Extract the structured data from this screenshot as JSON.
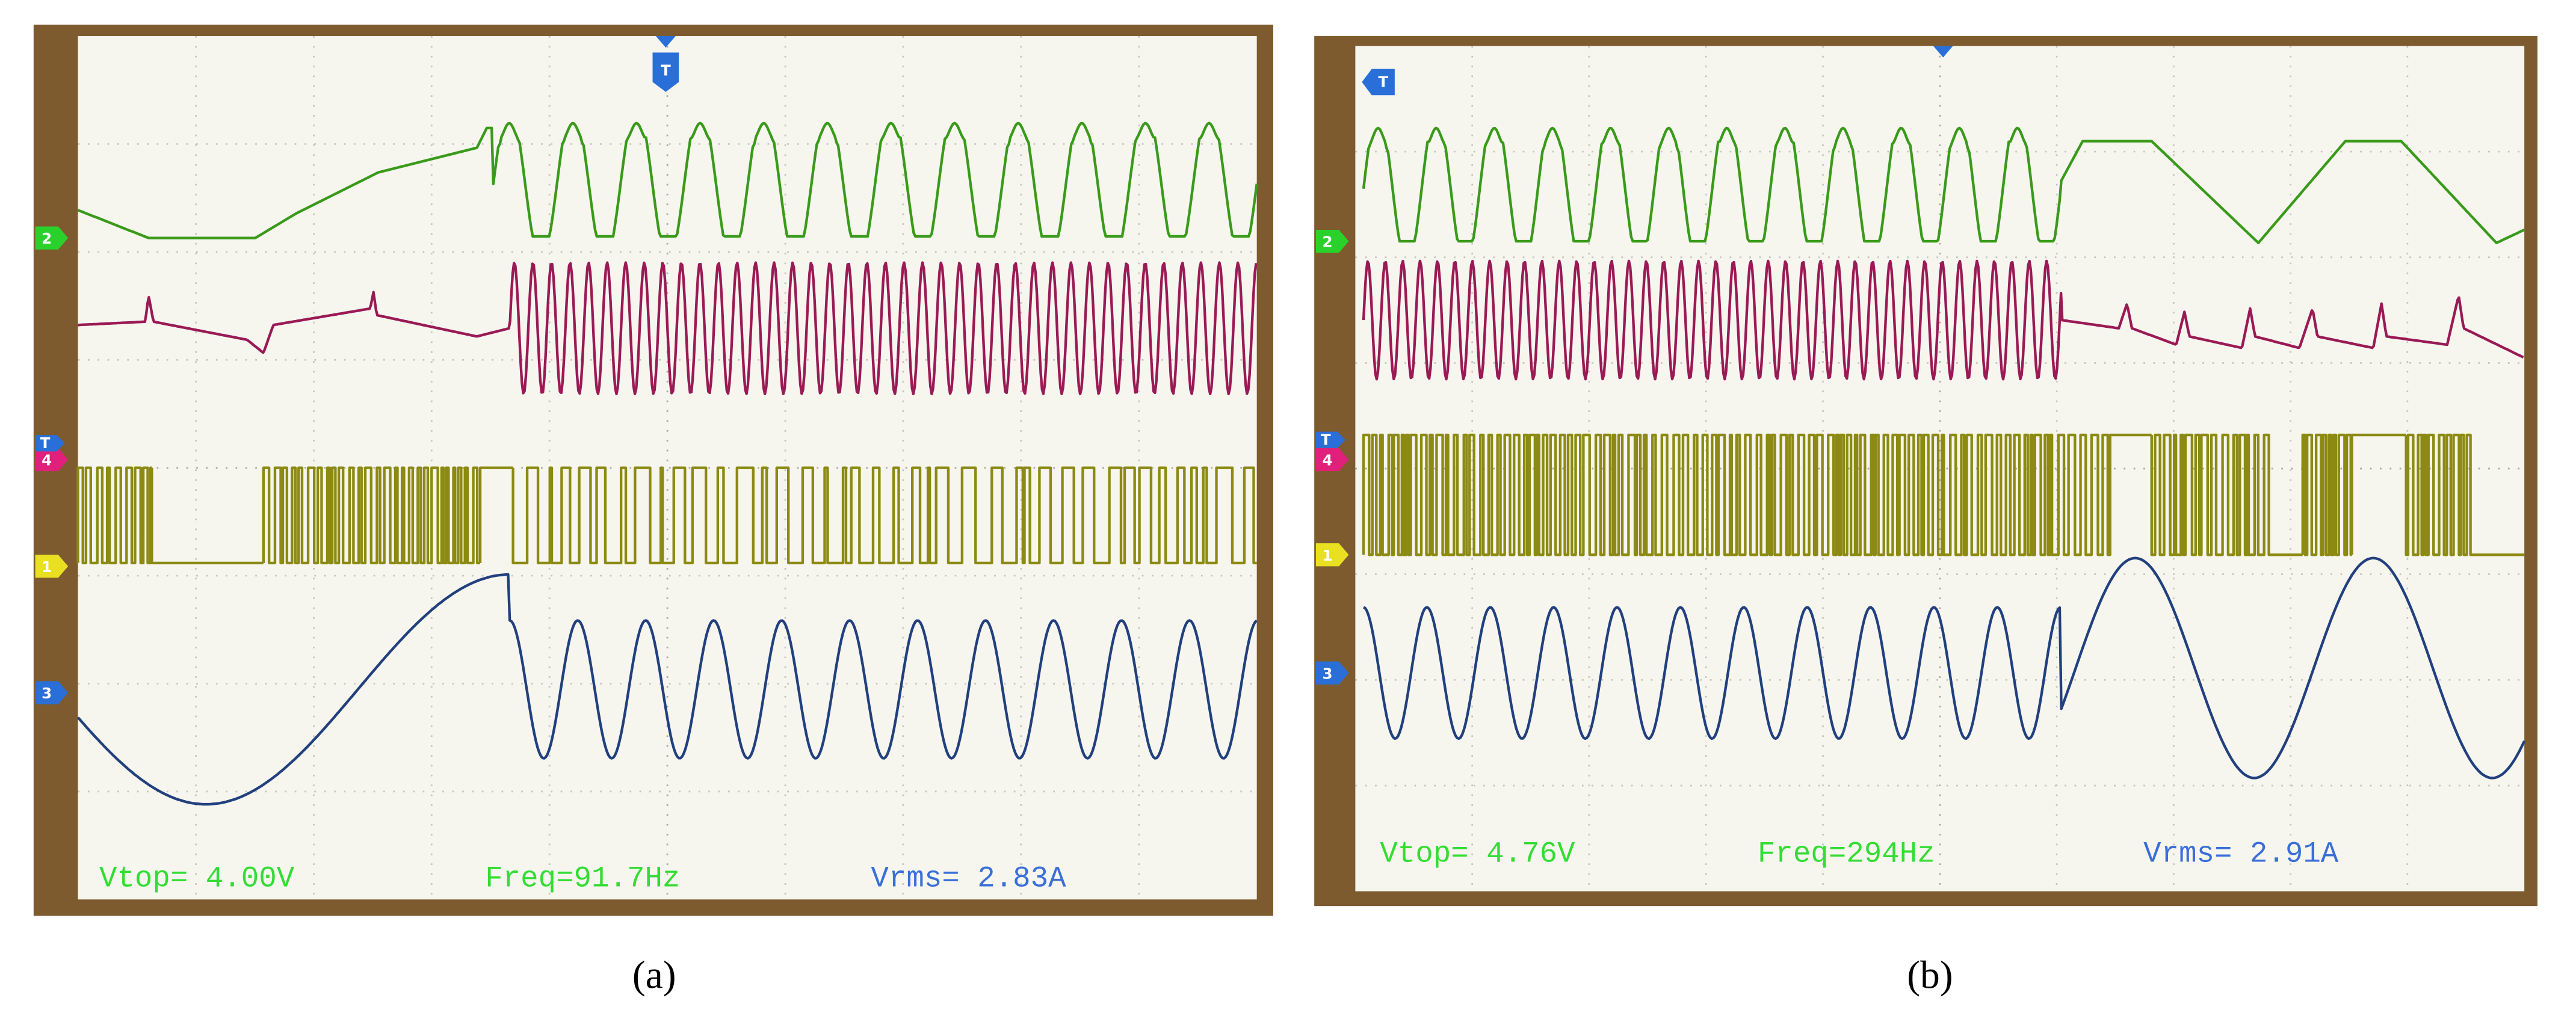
{
  "panels": [
    {
      "trigger": "T",
      "level_marker": "T",
      "channels": [
        "2",
        "4",
        "1",
        "3"
      ],
      "measurements": [
        "Vtop= 4.00V",
        "Freq=91.7Hz",
        "Vrms= 2.83A"
      ],
      "caption": "(a)"
    },
    {
      "trigger": "T",
      "level_marker": "T",
      "channels": [
        "2",
        "4",
        "1",
        "3"
      ],
      "measurements": [
        "Vtop= 4.76V",
        "Freq=294Hz",
        "Vrms= 2.91A"
      ],
      "caption": "(b)"
    }
  ]
}
